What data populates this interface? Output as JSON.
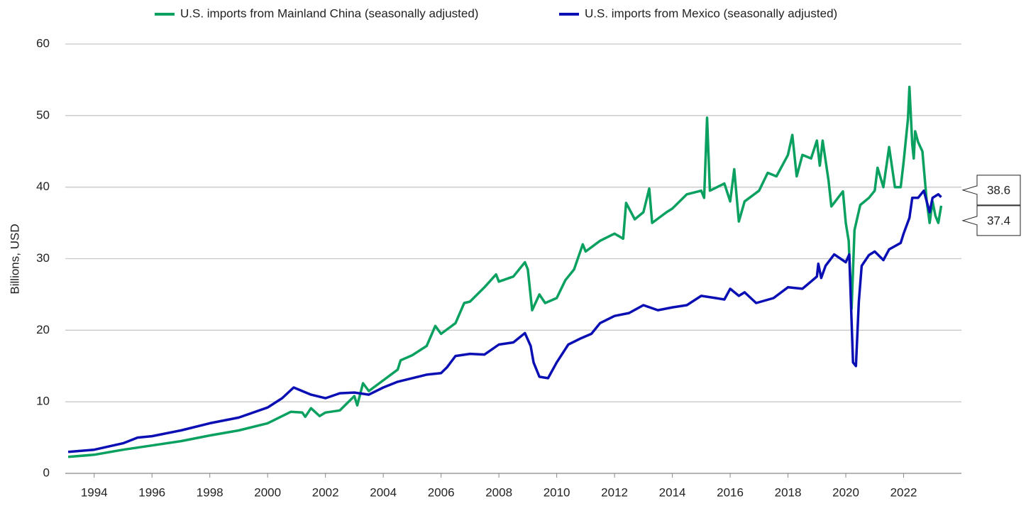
{
  "chart_data": {
    "type": "line",
    "y_label": "Billions, USD",
    "xlim": [
      1993,
      2024
    ],
    "xticks": [
      1994,
      1996,
      1998,
      2000,
      2002,
      2004,
      2006,
      2008,
      2010,
      2012,
      2014,
      2016,
      2018,
      2020,
      2022
    ],
    "ylim": [
      0,
      60
    ],
    "yticks": [
      0,
      10,
      20,
      30,
      40,
      50,
      60
    ],
    "grid": true,
    "legend": "top",
    "series": [
      {
        "name": "U.S. imports from Mainland China (seasonally adjusted)",
        "color": "#0aa060",
        "x": [
          1993.1,
          1994,
          1995,
          1996,
          1997,
          1998,
          1999,
          2000,
          2000.8,
          2001.2,
          2001.3,
          2001.5,
          2001.8,
          2002,
          2002.5,
          2003,
          2003.1,
          2003.3,
          2003.5,
          2004,
          2004.5,
          2004.6,
          2005,
          2005.5,
          2005.8,
          2006,
          2006.5,
          2006.8,
          2007,
          2007.5,
          2007.9,
          2008,
          2008.5,
          2008.9,
          2009,
          2009.15,
          2009.4,
          2009.6,
          2010,
          2010.3,
          2010.6,
          2010.9,
          2011,
          2011.5,
          2012,
          2012.3,
          2012.4,
          2012.7,
          2013,
          2013.2,
          2013.3,
          2013.8,
          2014,
          2014.5,
          2015,
          2015.1,
          2015.2,
          2015.3,
          2015.8,
          2016,
          2016.14,
          2016.3,
          2016.5,
          2017,
          2017.3,
          2017.6,
          2018,
          2018.15,
          2018.3,
          2018.5,
          2018.8,
          2019,
          2019.1,
          2019.2,
          2019.4,
          2019.5,
          2019.9,
          2020,
          2020.1,
          2020.2,
          2020.3,
          2020.5,
          2020.8,
          2021,
          2021.1,
          2021.3,
          2021.5,
          2021.7,
          2021.9,
          2022,
          2022.15,
          2022.2,
          2022.3,
          2022.35,
          2022.4,
          2022.5,
          2022.65,
          2022.8,
          2022.9,
          2023,
          2023.1,
          2023.2,
          2023.3
        ],
        "values": [
          2.3,
          2.6,
          3.3,
          3.9,
          4.5,
          5.3,
          6.0,
          7.0,
          8.6,
          8.5,
          7.9,
          9.1,
          8.0,
          8.5,
          8.8,
          10.8,
          9.5,
          12.6,
          11.5,
          13.0,
          14.5,
          15.8,
          16.5,
          17.8,
          20.6,
          19.5,
          21.0,
          23.8,
          24.0,
          26.0,
          27.8,
          26.8,
          27.5,
          29.5,
          28.5,
          22.8,
          25.0,
          23.8,
          24.5,
          27.0,
          28.5,
          32.0,
          31.0,
          32.5,
          33.5,
          32.8,
          37.8,
          35.5,
          36.5,
          39.8,
          35.0,
          36.5,
          37.0,
          39.0,
          39.5,
          38.5,
          49.7,
          39.5,
          40.5,
          38.0,
          42.5,
          35.2,
          38.0,
          39.5,
          42.0,
          41.5,
          44.5,
          47.3,
          41.5,
          44.5,
          44.0,
          46.5,
          43.0,
          46.5,
          41.0,
          37.3,
          39.4,
          35.0,
          32.5,
          23.0,
          34.0,
          37.5,
          38.5,
          39.5,
          42.7,
          40.0,
          45.6,
          40.0,
          40.0,
          43.5,
          49.5,
          54.0,
          46.0,
          44.0,
          47.8,
          46.3,
          45.0,
          38.0,
          35.0,
          38.0,
          36.0,
          35.0,
          37.4
        ]
      },
      {
        "name": "U.S. imports from Mexico (seasonally adjusted)",
        "color": "#0a0fb4",
        "x": [
          1993.1,
          1994,
          1995,
          1995.5,
          1996,
          1997,
          1998,
          1999,
          2000,
          2000.5,
          2000.9,
          2001.5,
          2002,
          2002.5,
          2003,
          2003.5,
          2004,
          2004.5,
          2005,
          2005.5,
          2006,
          2006.2,
          2006.5,
          2007,
          2007.5,
          2008,
          2008.5,
          2008.9,
          2009.1,
          2009.2,
          2009.4,
          2009.7,
          2010,
          2010.4,
          2010.8,
          2011.2,
          2011.5,
          2012,
          2012.5,
          2013,
          2013.5,
          2014,
          2014.5,
          2015,
          2015.5,
          2015.8,
          2016,
          2016.3,
          2016.5,
          2016.9,
          2017.5,
          2018,
          2018.5,
          2019,
          2019.05,
          2019.15,
          2019.3,
          2019.6,
          2020,
          2020.12,
          2020.25,
          2020.35,
          2020.45,
          2020.55,
          2020.8,
          2021,
          2021.3,
          2021.5,
          2021.9,
          2022,
          2022.2,
          2022.3,
          2022.5,
          2022.7,
          2022.9,
          2023,
          2023.2,
          2023.3
        ],
        "values": [
          3.0,
          3.3,
          4.2,
          5.0,
          5.2,
          6.0,
          7.0,
          7.8,
          9.2,
          10.5,
          12.0,
          11.0,
          10.5,
          11.2,
          11.3,
          11.0,
          12.0,
          12.8,
          13.3,
          13.8,
          14.0,
          14.8,
          16.4,
          16.7,
          16.6,
          18.0,
          18.3,
          19.6,
          17.8,
          15.5,
          13.5,
          13.3,
          15.5,
          18.0,
          18.8,
          19.5,
          21.0,
          22.0,
          22.4,
          23.5,
          22.8,
          23.2,
          23.5,
          24.8,
          24.5,
          24.3,
          25.8,
          24.8,
          25.3,
          23.8,
          24.5,
          26.0,
          25.8,
          27.5,
          29.3,
          27.3,
          29.0,
          30.6,
          29.5,
          30.6,
          15.5,
          15.0,
          24.0,
          29.0,
          30.5,
          31.0,
          29.8,
          31.3,
          32.2,
          33.5,
          35.7,
          38.5,
          38.5,
          39.5,
          36.5,
          38.5,
          39.0,
          38.6
        ]
      }
    ]
  }
}
